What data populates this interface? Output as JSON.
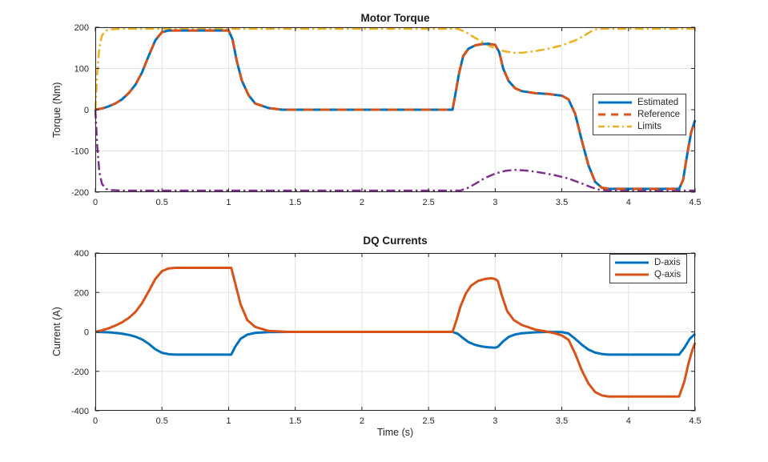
{
  "figure": {
    "background": "#ffffff"
  },
  "colors": {
    "blue": "#0072BD",
    "orange": "#D95319",
    "yellow": "#EDB120",
    "purple": "#7E2F8E",
    "axis": "#262626",
    "grid": "#e2e2e2"
  },
  "chart_data": [
    {
      "type": "line",
      "title": "Motor Torque",
      "xlabel": "",
      "ylabel": "Torque (Nm)",
      "xlim": [
        0,
        4.5
      ],
      "ylim": [
        -200,
        200
      ],
      "xticks": [
        0,
        0.5,
        1,
        1.5,
        2,
        2.5,
        3,
        3.5,
        4,
        4.5
      ],
      "yticks": [
        -200,
        -100,
        0,
        100,
        200
      ],
      "grid": true,
      "legend": {
        "position": "right-center",
        "entries": [
          {
            "label": "Estimated",
            "color": "#0072BD",
            "dash": "solid",
            "width": 3
          },
          {
            "label": "Reference",
            "color": "#D95319",
            "dash": "dashed",
            "width": 3
          },
          {
            "label": "Limits",
            "color": "#EDB120",
            "dash": "dashdot",
            "width": 2.5
          }
        ]
      },
      "series": [
        {
          "name": "upper-limit",
          "color": "#EDB120",
          "dash": "dashdot",
          "width": 2.5,
          "x": [
            0,
            0.015,
            0.03,
            0.05,
            0.08,
            0.12,
            0.2,
            2.72,
            2.78,
            2.84,
            2.9,
            2.96,
            3.02,
            3.08,
            3.14,
            3.2,
            3.3,
            3.4,
            3.5,
            3.6,
            3.66,
            3.72,
            3.76,
            3.8,
            4.5
          ],
          "y": [
            0,
            90,
            150,
            180,
            192,
            195,
            196,
            196,
            188,
            176,
            165,
            154,
            146,
            141,
            138,
            138,
            142,
            148,
            156,
            168,
            178,
            190,
            195,
            196,
            196
          ]
        },
        {
          "name": "lower-limit",
          "color": "#7E2F8E",
          "dash": "dashdot",
          "width": 2.5,
          "x": [
            0,
            0.015,
            0.03,
            0.05,
            0.08,
            0.12,
            0.2,
            2.74,
            2.8,
            2.86,
            2.92,
            3.0,
            3.08,
            3.15,
            3.25,
            3.35,
            3.45,
            3.55,
            3.65,
            3.72,
            3.78,
            3.85,
            4.5
          ],
          "y": [
            0,
            -90,
            -150,
            -180,
            -192,
            -195,
            -196,
            -196,
            -189,
            -178,
            -166,
            -155,
            -148,
            -146,
            -148,
            -153,
            -159,
            -167,
            -179,
            -188,
            -194,
            -196,
            -196
          ]
        },
        {
          "name": "estimated",
          "color": "#0072BD",
          "dash": "solid",
          "width": 3,
          "x": [
            0,
            0.05,
            0.1,
            0.15,
            0.2,
            0.25,
            0.3,
            0.35,
            0.4,
            0.45,
            0.5,
            0.55,
            0.6,
            1.0,
            1.03,
            1.06,
            1.1,
            1.15,
            1.2,
            1.3,
            1.4,
            2.68,
            2.7,
            2.73,
            2.76,
            2.8,
            2.85,
            2.9,
            2.95,
            3.0,
            3.03,
            3.06,
            3.1,
            3.15,
            3.2,
            3.3,
            3.4,
            3.5,
            3.55,
            3.6,
            3.65,
            3.7,
            3.75,
            3.8,
            3.85,
            4.0,
            4.38,
            4.41,
            4.44,
            4.47,
            4.5
          ],
          "y": [
            0,
            3,
            8,
            15,
            25,
            40,
            60,
            90,
            130,
            168,
            188,
            192,
            192,
            192,
            170,
            120,
            70,
            35,
            15,
            4,
            0,
            0,
            35,
            90,
            130,
            148,
            156,
            159,
            160,
            157,
            140,
            100,
            70,
            52,
            45,
            40,
            38,
            34,
            25,
            -10,
            -75,
            -135,
            -175,
            -189,
            -192,
            -192,
            -192,
            -170,
            -110,
            -55,
            -25
          ]
        },
        {
          "name": "reference",
          "color": "#D95319",
          "dash": "dashed",
          "width": 3,
          "x": [
            0,
            0.05,
            0.1,
            0.15,
            0.2,
            0.25,
            0.3,
            0.35,
            0.4,
            0.45,
            0.5,
            0.55,
            0.6,
            1.0,
            1.03,
            1.06,
            1.1,
            1.15,
            1.2,
            1.3,
            1.4,
            2.68,
            2.7,
            2.73,
            2.76,
            2.8,
            2.85,
            2.9,
            2.95,
            3.0,
            3.03,
            3.06,
            3.1,
            3.15,
            3.2,
            3.3,
            3.4,
            3.5,
            3.55,
            3.6,
            3.65,
            3.7,
            3.75,
            3.8,
            3.85,
            4.0,
            4.38,
            4.41,
            4.44,
            4.47,
            4.5
          ],
          "y": [
            0,
            3,
            8,
            15,
            25,
            40,
            60,
            90,
            130,
            168,
            188,
            192,
            192,
            192,
            170,
            120,
            70,
            35,
            15,
            4,
            0,
            0,
            35,
            90,
            130,
            148,
            156,
            159,
            160,
            157,
            140,
            100,
            70,
            52,
            45,
            40,
            38,
            34,
            25,
            -10,
            -75,
            -135,
            -175,
            -189,
            -192,
            -192,
            -192,
            -170,
            -110,
            -55,
            -25
          ]
        }
      ]
    },
    {
      "type": "line",
      "title": "DQ Currents",
      "xlabel": "Time (s)",
      "ylabel": "Current (A)",
      "xlim": [
        0,
        4.5
      ],
      "ylim": [
        -400,
        400
      ],
      "xticks": [
        0,
        0.5,
        1,
        1.5,
        2,
        2.5,
        3,
        3.5,
        4,
        4.5
      ],
      "yticks": [
        -400,
        -200,
        0,
        200,
        400
      ],
      "grid": true,
      "legend": {
        "position": "top-right",
        "entries": [
          {
            "label": "D-axis",
            "color": "#0072BD",
            "dash": "solid",
            "width": 3
          },
          {
            "label": "Q-axis",
            "color": "#D95319",
            "dash": "solid",
            "width": 3
          }
        ]
      },
      "series": [
        {
          "name": "d-axis",
          "color": "#0072BD",
          "dash": "solid",
          "width": 3,
          "x": [
            0,
            0.1,
            0.15,
            0.2,
            0.25,
            0.3,
            0.35,
            0.4,
            0.45,
            0.5,
            0.55,
            0.6,
            1.02,
            1.05,
            1.09,
            1.14,
            1.2,
            1.3,
            1.45,
            2.68,
            2.72,
            2.76,
            2.8,
            2.85,
            2.9,
            2.95,
            3.0,
            3.02,
            3.06,
            3.1,
            3.15,
            3.2,
            3.3,
            3.4,
            3.5,
            3.55,
            3.6,
            3.65,
            3.7,
            3.75,
            3.8,
            3.85,
            4.0,
            4.38,
            4.42,
            4.46,
            4.5
          ],
          "y": [
            0,
            -2,
            -5,
            -9,
            -15,
            -24,
            -38,
            -60,
            -88,
            -106,
            -113,
            -115,
            -115,
            -75,
            -35,
            -14,
            -5,
            -1,
            0,
            0,
            -10,
            -32,
            -52,
            -66,
            -74,
            -78,
            -80,
            -76,
            -48,
            -26,
            -13,
            -7,
            -2,
            0,
            -1,
            -8,
            -35,
            -65,
            -90,
            -105,
            -112,
            -115,
            -115,
            -115,
            -80,
            -35,
            -10
          ]
        },
        {
          "name": "q-axis",
          "color": "#D95319",
          "dash": "solid",
          "width": 3,
          "x": [
            0,
            0.05,
            0.1,
            0.15,
            0.2,
            0.25,
            0.3,
            0.35,
            0.4,
            0.45,
            0.5,
            0.55,
            0.6,
            1.02,
            1.05,
            1.09,
            1.14,
            1.2,
            1.3,
            1.45,
            2.68,
            2.71,
            2.74,
            2.78,
            2.82,
            2.87,
            2.92,
            2.97,
            3.0,
            3.02,
            3.05,
            3.09,
            3.14,
            3.2,
            3.3,
            3.4,
            3.45,
            3.5,
            3.55,
            3.6,
            3.65,
            3.7,
            3.75,
            3.8,
            3.85,
            4.0,
            4.38,
            4.42,
            4.45,
            4.48,
            4.5
          ],
          "y": [
            0,
            8,
            18,
            32,
            48,
            70,
            100,
            145,
            205,
            268,
            308,
            322,
            325,
            325,
            245,
            140,
            60,
            25,
            5,
            0,
            0,
            60,
            130,
            195,
            235,
            258,
            268,
            272,
            268,
            258,
            185,
            105,
            60,
            35,
            12,
            0,
            -8,
            -18,
            -40,
            -110,
            -195,
            -262,
            -305,
            -322,
            -328,
            -328,
            -328,
            -250,
            -160,
            -90,
            -55
          ]
        }
      ]
    }
  ]
}
